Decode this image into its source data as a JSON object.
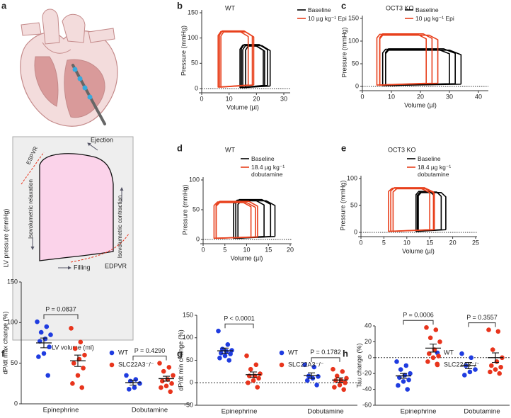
{
  "panel_a": {
    "panel": "a",
    "labels": {
      "ejection": "Ejection",
      "espvr": "ESPVR",
      "relaxation": "Isovolumetric relaxation",
      "contraction": "Isovolumetric contraction",
      "filling": "Filling",
      "edpvr": "EDPVR"
    },
    "ylabel": "LV pressure (mmHg)",
    "xlabel": "LV volume (ml)"
  },
  "chart_data": [
    {
      "type": "pv-loop",
      "panel": "b",
      "title": "WT",
      "xlabel": "Volume (µl)",
      "ylabel": "Pressure (mmHg)",
      "xlim": [
        0,
        30
      ],
      "ylim": [
        0,
        150
      ],
      "xticks": [
        0,
        10,
        20,
        30
      ],
      "yticks": [
        0,
        50,
        100,
        150
      ],
      "zero_line": true,
      "series": [
        {
          "name": "Baseline",
          "color": "#000000",
          "loops": [
            {
              "x": [
                22.5,
                22.5,
                19.5,
                15,
                14,
                14,
                22.5
              ],
              "y": [
                6,
                76,
                86,
                86,
                78,
                2,
                6
              ]
            },
            {
              "x": [
                24,
                24,
                21,
                15.5,
                14.5,
                14.5,
                24
              ],
              "y": [
                6,
                77,
                87,
                87,
                79,
                2,
                6
              ]
            },
            {
              "x": [
                25,
                25,
                22,
                16,
                15,
                15,
                25
              ],
              "y": [
                5,
                75,
                85,
                85,
                77,
                2,
                5
              ]
            },
            {
              "x": [
                23,
                23,
                20,
                17,
                16,
                16,
                23
              ],
              "y": [
                6,
                74,
                84,
                84,
                76,
                2,
                6
              ]
            }
          ]
        },
        {
          "name": "10 µg kg⁻¹ Epi",
          "color": "#e8401c",
          "loops": [
            {
              "x": [
                17,
                17,
                14,
                7,
                6,
                6,
                17
              ],
              "y": [
                7,
                103,
                113,
                113,
                105,
                3,
                7
              ]
            },
            {
              "x": [
                18.5,
                18.5,
                15.5,
                7.5,
                6.5,
                6.5,
                18.5
              ],
              "y": [
                7,
                104,
                114,
                114,
                106,
                3,
                7
              ]
            },
            {
              "x": [
                19,
                19,
                16,
                8,
                7,
                7,
                19
              ],
              "y": [
                7,
                102,
                112,
                112,
                104,
                3,
                7
              ]
            }
          ]
        }
      ]
    },
    {
      "type": "pv-loop",
      "panel": "c",
      "title": "OCT3 KO",
      "xlabel": "Volume (µl)",
      "ylabel": "Pressure (mmHg)",
      "xlim": [
        0,
        40
      ],
      "ylim": [
        0,
        150
      ],
      "xticks": [
        0,
        10,
        20,
        30,
        40
      ],
      "yticks": [
        0,
        50,
        100,
        150
      ],
      "zero_line": true,
      "series": [
        {
          "name": "Baseline",
          "color": "#000000",
          "loops": [
            {
              "x": [
                30,
                30,
                26,
                8,
                7,
                7,
                30
              ],
              "y": [
                6,
                72,
                82,
                82,
                74,
                2,
                6
              ]
            },
            {
              "x": [
                32,
                32,
                28,
                9,
                8,
                8,
                32
              ],
              "y": [
                6,
                73,
                83,
                83,
                75,
                2,
                6
              ]
            },
            {
              "x": [
                34,
                34,
                30,
                9,
                8,
                8,
                34
              ],
              "y": [
                5,
                70,
                80,
                80,
                72,
                2,
                5
              ]
            }
          ]
        },
        {
          "name": "10 µg kg⁻¹ Epi",
          "color": "#e8401c",
          "loops": [
            {
              "x": [
                22,
                22,
                19,
                6,
                5,
                5,
                22
              ],
              "y": [
                7,
                105,
                115,
                115,
                107,
                3,
                7
              ]
            },
            {
              "x": [
                24,
                24,
                21,
                7,
                6,
                6,
                24
              ],
              "y": [
                7,
                106,
                116,
                116,
                108,
                3,
                7
              ]
            },
            {
              "x": [
                26,
                26,
                23,
                7,
                6,
                6,
                26
              ],
              "y": [
                7,
                103,
                113,
                113,
                105,
                3,
                7
              ]
            }
          ]
        }
      ]
    },
    {
      "type": "pv-loop",
      "panel": "d",
      "title": "WT",
      "xlabel": "Volume (µl)",
      "ylabel": "Pressure (mmHg)",
      "xlim": [
        0,
        20
      ],
      "ylim": [
        0,
        100
      ],
      "xticks": [
        0,
        5,
        10,
        15,
        20
      ],
      "yticks": [
        0,
        50,
        100
      ],
      "zero_line": true,
      "series": [
        {
          "name": "Baseline",
          "color": "#000000",
          "loops": [
            {
              "x": [
                14,
                14,
                12,
                7.8,
                7,
                7,
                14
              ],
              "y": [
                5,
                58,
                66,
                66,
                60,
                2,
                5
              ]
            },
            {
              "x": [
                15.5,
                15.5,
                13.5,
                8.3,
                7.5,
                7.5,
                15.5
              ],
              "y": [
                5,
                59,
                67,
                67,
                61,
                2,
                5
              ]
            },
            {
              "x": [
                16.5,
                16.5,
                14.5,
                8.8,
                8,
                8,
                16.5
              ],
              "y": [
                5,
                57,
                65,
                65,
                59,
                2,
                5
              ]
            }
          ]
        },
        {
          "name": "18.4 µg kg⁻¹ dobutamine",
          "color": "#e8401c",
          "loops": [
            {
              "x": [
                11,
                11,
                9,
                3.3,
                2.5,
                2.5,
                11
              ],
              "y": [
                4,
                55,
                63,
                63,
                57,
                2,
                4
              ]
            },
            {
              "x": [
                12,
                12,
                10,
                3.8,
                3,
                3,
                12
              ],
              "y": [
                4,
                54,
                62,
                62,
                56,
                2,
                4
              ]
            },
            {
              "x": [
                12.5,
                12.5,
                10.5,
                3.8,
                3,
                3,
                12.5
              ],
              "y": [
                4,
                56,
                64,
                64,
                58,
                2,
                4
              ]
            }
          ]
        }
      ]
    },
    {
      "type": "pv-loop",
      "panel": "e",
      "title": "OCT3 KO",
      "xlabel": "Volume (µl)",
      "ylabel": "Pressure (mmHg)",
      "xlim": [
        0,
        25
      ],
      "ylim": [
        0,
        100
      ],
      "xticks": [
        0,
        5,
        10,
        15,
        20,
        25
      ],
      "yticks": [
        0,
        50,
        100
      ],
      "zero_line": true,
      "series": [
        {
          "name": "Baseline",
          "color": "#000000",
          "loops": [
            {
              "x": [
                16,
                16,
                15,
                12.6,
                12,
                12,
                16
              ],
              "y": [
                5,
                68,
                76,
                76,
                70,
                2,
                5
              ]
            },
            {
              "x": [
                17.5,
                17.5,
                16.5,
                12.9,
                12.3,
                12.3,
                17.5
              ],
              "y": [
                5,
                67,
                75,
                75,
                69,
                2,
                5
              ]
            },
            {
              "x": [
                18.5,
                18.5,
                17.5,
                13.1,
                12.5,
                12.5,
                18.5
              ],
              "y": [
                5,
                66,
                74,
                74,
                68,
                2,
                5
              ]
            }
          ]
        },
        {
          "name": "18.4 µg kg⁻¹ dobutamine",
          "color": "#e8401c",
          "loops": [
            {
              "x": [
                15,
                15,
                13,
                6.8,
                6,
                6,
                15
              ],
              "y": [
                5,
                74,
                82,
                82,
                76,
                2,
                5
              ]
            },
            {
              "x": [
                15.8,
                15.8,
                13.8,
                7.3,
                6.5,
                6.5,
                15.8
              ],
              "y": [
                5,
                75,
                83,
                83,
                77,
                2,
                5
              ]
            },
            {
              "x": [
                16,
                16,
                14,
                7.8,
                7,
                7,
                16
              ],
              "y": [
                5,
                73,
                81,
                81,
                75,
                2,
                5
              ]
            }
          ]
        }
      ]
    },
    {
      "type": "dot",
      "panel": "f",
      "ylabel": "dP/dt max change (%)",
      "categories": [
        "Epinephrine",
        "Dobutamine"
      ],
      "ylim": [
        0,
        150
      ],
      "yticks": [
        0,
        50,
        100,
        150
      ],
      "zero_line": false,
      "series": [
        {
          "name": "WT",
          "color": "#1f3ce0",
          "values": [
            [
              101,
              95,
              88,
              85,
              80,
              77,
              70,
              62,
              58,
              35
            ],
            [
              35,
              30,
              28,
              25,
              20,
              18
            ]
          ],
          "mean": [
            75,
            26
          ],
          "sem": [
            6,
            3
          ]
        },
        {
          "name": "SLC22A3⁻/⁻",
          "color": "#e8341c",
          "values": [
            [
              93,
              76,
              68,
              60,
              55,
              50,
              44,
              35,
              25,
              20
            ],
            [
              50,
              45,
              40,
              35,
              30,
              28,
              25,
              22,
              20,
              15
            ]
          ],
          "mean": [
            53,
            31
          ],
          "sem": [
            7,
            3
          ]
        }
      ],
      "annotations": [
        "P = 0.0837",
        "P = 0.4290"
      ]
    },
    {
      "type": "dot",
      "panel": "g",
      "ylabel": "dP/dt min change (%)",
      "categories": [
        "Epinephrine",
        "Dobutamine"
      ],
      "ylim": [
        -50,
        150
      ],
      "yticks": [
        -50,
        0,
        50,
        100,
        150
      ],
      "zero_line": true,
      "series": [
        {
          "name": "WT",
          "color": "#1f3ce0",
          "values": [
            [
              115,
              85,
              75,
              72,
              70,
              66,
              64,
              60,
              55,
              50
            ],
            [
              40,
              35,
              15,
              14,
              10,
              5,
              -5
            ]
          ],
          "mean": [
            71,
            16
          ],
          "sem": [
            6,
            6
          ]
        },
        {
          "name": "SLC22A3⁻/⁻",
          "color": "#e8341c",
          "values": [
            [
              60,
              40,
              30,
              20,
              15,
              15,
              10,
              5,
              0,
              -10
            ],
            [
              30,
              25,
              15,
              10,
              5,
              5,
              0,
              -5,
              -10,
              -15
            ]
          ],
          "mean": [
            18,
            6
          ],
          "sem": [
            6,
            5
          ]
        }
      ],
      "annotations": [
        "P < 0.0001",
        "P = 0.1782"
      ]
    },
    {
      "type": "dot",
      "panel": "h",
      "ylabel": "Tau change (%)",
      "categories": [
        "Epinephrine",
        "Dobutamine"
      ],
      "ylim": [
        -60,
        40
      ],
      "yticks": [
        -60,
        -40,
        -20,
        0,
        20,
        40
      ],
      "zero_line": true,
      "series": [
        {
          "name": "WT",
          "color": "#1f3ce0",
          "values": [
            [
              -5,
              -10,
              -15,
              -20,
              -22,
              -25,
              -28,
              -30,
              -35,
              -40
            ],
            [
              5,
              0,
              -10,
              -15,
              -18,
              -22
            ]
          ],
          "mean": [
            -23,
            -10
          ],
          "sem": [
            3,
            4
          ]
        },
        {
          "name": "SLC22A3⁻/⁻",
          "color": "#e8341c",
          "values": [
            [
              38,
              35,
              25,
              20,
              10,
              5,
              2,
              0,
              -5,
              -8
            ],
            [
              35,
              33,
              10,
              0,
              -5,
              -10,
              -12,
              -15,
              -18,
              -20
            ]
          ],
          "mean": [
            12,
            0
          ],
          "sem": [
            5,
            6
          ]
        }
      ],
      "annotations": [
        "P = 0.0006",
        "P = 0.3557"
      ]
    }
  ]
}
